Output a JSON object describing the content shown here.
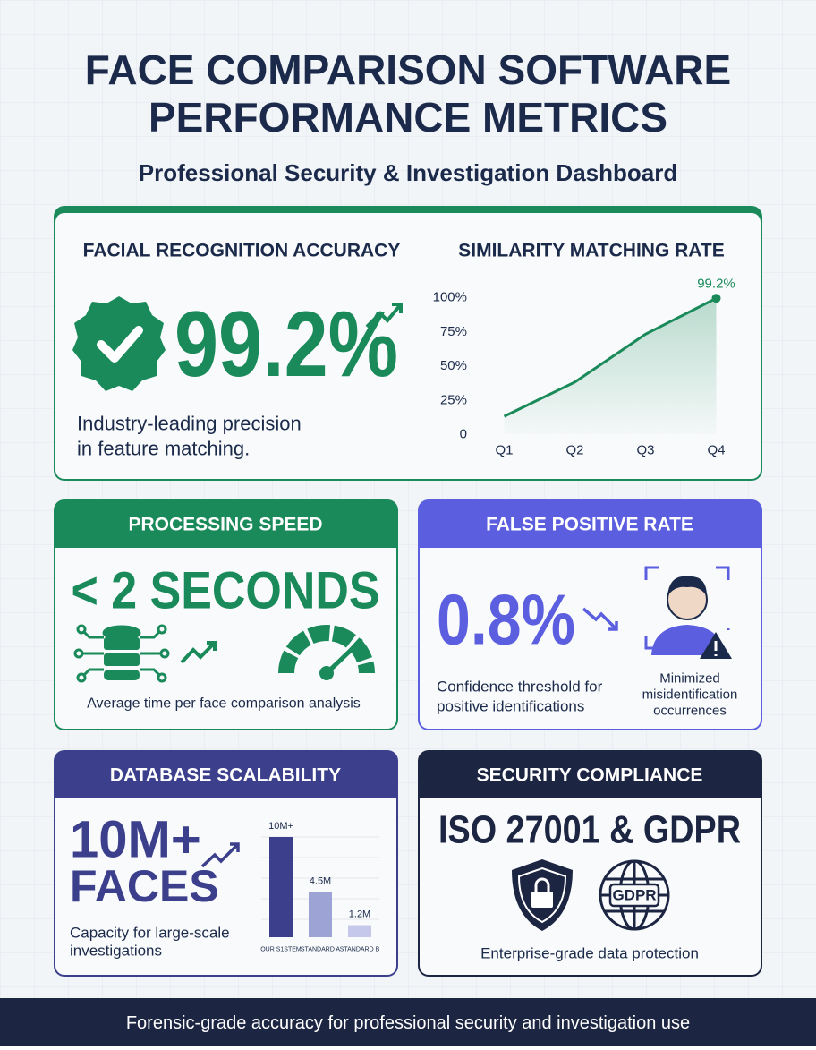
{
  "header": {
    "title_line1": "FACE COMPARISON SOFTWARE",
    "title_line2": "PERFORMANCE METRICS",
    "subtitle": "Professional Security & Investigation Dashboard"
  },
  "accuracy": {
    "heading": "FACIAL RECOGNITION ACCURACY",
    "value": "99.2%",
    "description_line1": "Industry-leading precision",
    "description_line2": "in feature matching."
  },
  "speed": {
    "heading": "PROCESSING SPEED",
    "value": "< 2 SECONDS",
    "description": "Average time per face comparison analysis"
  },
  "false_positive": {
    "heading": "FALSE POSITIVE RATE",
    "value": "0.8%",
    "description_line1": "Confidence threshold for",
    "description_line2": "positive identifications",
    "note_line1": "Minimized",
    "note_line2": "misidentification",
    "note_line3": "occurrences"
  },
  "database": {
    "heading": "DATABASE SCALABILITY",
    "value_line1": "10M+",
    "value_line2": "FACES",
    "description_line1": "Capacity for large-scale",
    "description_line2": "investigations"
  },
  "compliance": {
    "heading": "SECURITY COMPLIANCE",
    "value": "ISO 27001 & GDPR",
    "badge": "GDPR",
    "description": "Enterprise-grade data protection"
  },
  "footer": {
    "text": "Forensic-grade accuracy for professional security and investigation use"
  },
  "chart_data": [
    {
      "type": "line",
      "title": "SIMILARITY MATCHING RATE",
      "categories": [
        "Q1",
        "Q2",
        "Q3",
        "Q4"
      ],
      "values": [
        13,
        38,
        73,
        99.2
      ],
      "value_labels": [
        null,
        null,
        null,
        "99.2%"
      ],
      "color": "#1a8a5a",
      "ylim": [
        0,
        100
      ],
      "yticks": [
        0,
        {
          "value": 25,
          "label": "25%"
        },
        {
          "value": 50,
          "label": "50%"
        },
        {
          "value": 75,
          "label": "75%"
        },
        {
          "value": 100,
          "label": "100%"
        }
      ],
      "grid": false
    },
    {
      "type": "bar",
      "categories": [
        "OUR S1STEM",
        "STANDARD A",
        "STANDARD B"
      ],
      "values": [
        10000000,
        4500000,
        1200000
      ],
      "value_labels": [
        "10M+",
        "4.5M",
        "1.2M"
      ],
      "colors": [
        "#3b3f8c",
        "#9ea3d6",
        "#c5c8ea"
      ],
      "ylim": [
        0,
        10000000
      ]
    }
  ]
}
